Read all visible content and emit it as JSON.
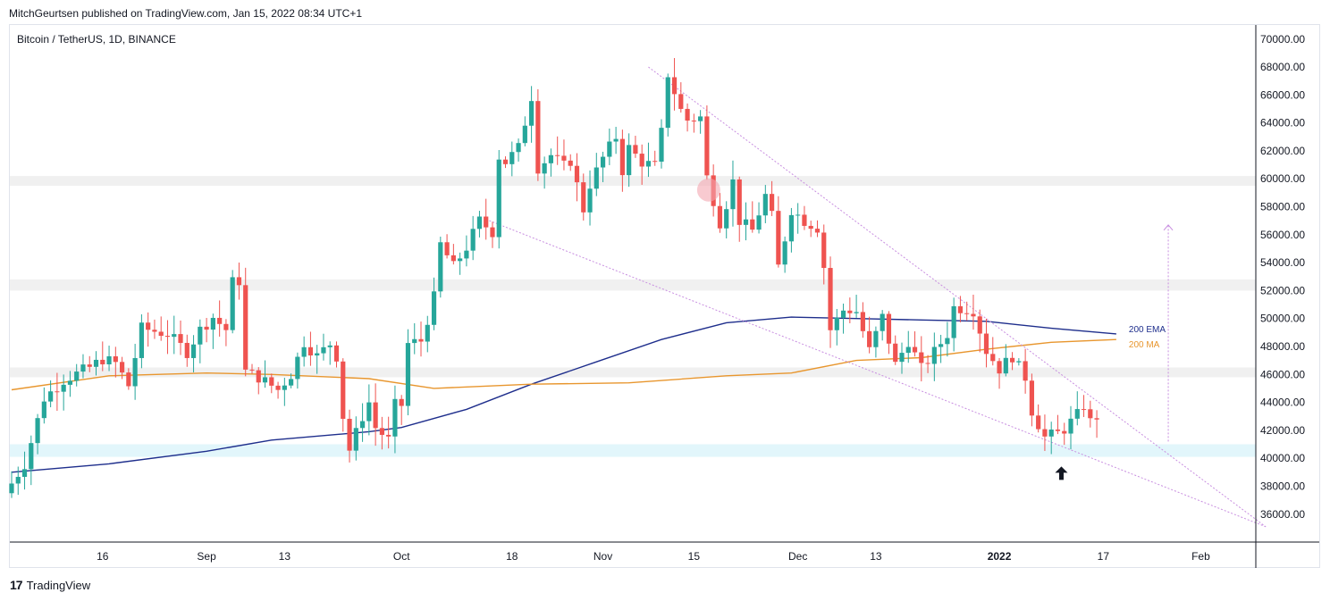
{
  "publisher_line": "MitchGeurtsen published on TradingView.com, Jan 15, 2022 08:34 UTC+1",
  "symbol_line": "Bitcoin / TetherUS, 1D, BINANCE",
  "brand": {
    "logo_icon": "tradingview-logo-icon",
    "name": "TradingView"
  },
  "chart_data": {
    "type": "candlestick",
    "y_axis": {
      "min": 35000,
      "max": 71000,
      "ticks": [
        "70000.00",
        "68000.00",
        "66000.00",
        "64000.00",
        "62000.00",
        "60000.00",
        "58000.00",
        "56000.00",
        "54000.00",
        "52000.00",
        "50000.00",
        "48000.00",
        "46000.00",
        "44000.00",
        "42000.00",
        "40000.00",
        "38000.00",
        "36000.00"
      ]
    },
    "x_axis": {
      "labels": [
        {
          "text": "16",
          "day": 14
        },
        {
          "text": "Sep",
          "day": 30
        },
        {
          "text": "13",
          "day": 42
        },
        {
          "text": "Oct",
          "day": 60
        },
        {
          "text": "18",
          "day": 77
        },
        {
          "text": "Nov",
          "day": 91
        },
        {
          "text": "15",
          "day": 105
        },
        {
          "text": "Dec",
          "day": 121
        },
        {
          "text": "13",
          "day": 133
        },
        {
          "text": "2022",
          "day": 152
        },
        {
          "text": "17",
          "day": 168
        },
        {
          "text": "Feb",
          "day": 183
        }
      ],
      "start_date": "2021-08-02",
      "days": 195
    },
    "indicators": [
      {
        "name": "200 EMA",
        "color": "#1e2e8c",
        "points": [
          [
            0,
            39000
          ],
          [
            15,
            39600
          ],
          [
            30,
            40500
          ],
          [
            40,
            41300
          ],
          [
            55,
            41900
          ],
          [
            60,
            42200
          ],
          [
            70,
            43500
          ],
          [
            80,
            45300
          ],
          [
            90,
            46900
          ],
          [
            100,
            48500
          ],
          [
            110,
            49700
          ],
          [
            120,
            50100
          ],
          [
            130,
            50000
          ],
          [
            140,
            49900
          ],
          [
            150,
            49800
          ],
          [
            160,
            49300
          ],
          [
            170,
            48900
          ]
        ]
      },
      {
        "name": "200 MA",
        "color": "#e8962e",
        "points": [
          [
            0,
            44900
          ],
          [
            15,
            45900
          ],
          [
            30,
            46100
          ],
          [
            40,
            46000
          ],
          [
            55,
            45700
          ],
          [
            65,
            45000
          ],
          [
            80,
            45300
          ],
          [
            95,
            45400
          ],
          [
            110,
            45900
          ],
          [
            120,
            46100
          ],
          [
            130,
            47000
          ],
          [
            140,
            47200
          ],
          [
            150,
            47800
          ],
          [
            160,
            48300
          ],
          [
            170,
            48500
          ]
        ]
      }
    ],
    "zones": [
      {
        "from": 59500,
        "to": 60200,
        "color": "#f0f0f0"
      },
      {
        "from": 52000,
        "to": 52800,
        "color": "#f0f0f0"
      },
      {
        "from": 45800,
        "to": 46500,
        "color": "#f0f0f0"
      },
      {
        "from": 40100,
        "to": 41000,
        "color": "#e2f6fb"
      }
    ],
    "trendlines": [
      {
        "from": [
          98,
          68000
        ],
        "to": [
          193,
          35100
        ],
        "color": "#c88ee0"
      },
      {
        "from": [
          73,
          57100
        ],
        "to": [
          193,
          35100
        ],
        "color": "#c88ee0"
      }
    ],
    "projection_arrow": {
      "day": 178,
      "from": 41200,
      "to": 56700,
      "color": "#c88ee0"
    },
    "highlight_circle": {
      "day": 107,
      "price": 59200
    },
    "up_arrow": {
      "day": 161,
      "price": 38900
    }
  }
}
